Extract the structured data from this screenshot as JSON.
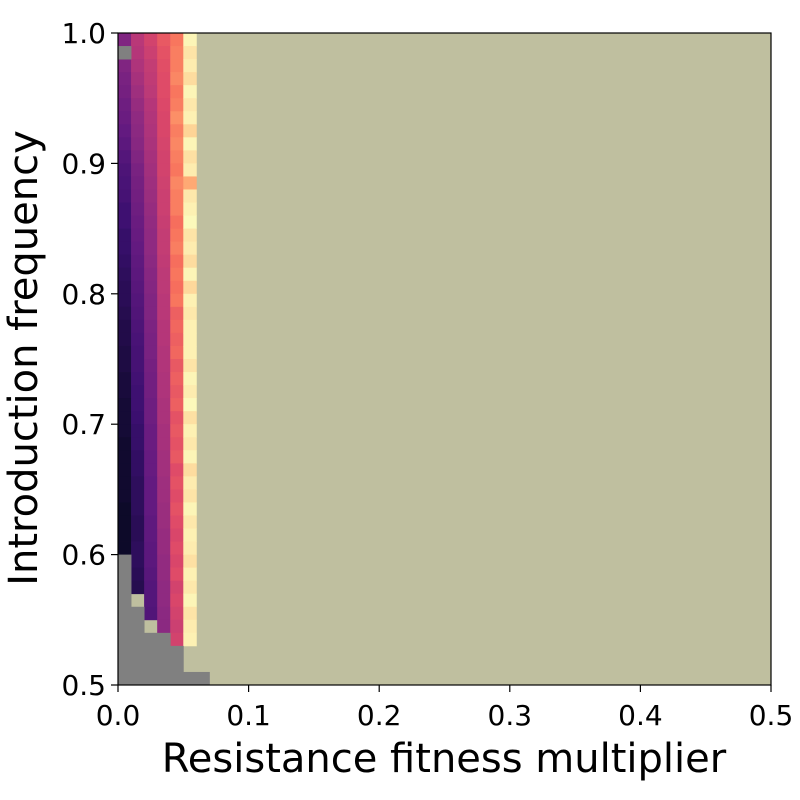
{
  "chart_data": {
    "type": "heatmap",
    "xlabel": "Resistance fitness multiplier",
    "ylabel": "Introduction frequency",
    "xlim": [
      0,
      0.5
    ],
    "ylim": [
      0.5,
      1.0
    ],
    "xticks": [
      "0.0",
      "0.1",
      "0.2",
      "0.3",
      "0.4",
      "0.5"
    ],
    "yticks": [
      "0.5",
      "0.6",
      "0.7",
      "0.8",
      "0.9",
      "1.0"
    ],
    "grid": false,
    "cell_size": {
      "dx": 0.01,
      "dy": 0.01
    },
    "colors": {
      "colormap": [
        "#0d0a29",
        "#3b0f70",
        "#641a80",
        "#8c2981",
        "#b73779",
        "#de4968",
        "#f7705c",
        "#fe9f6d",
        "#fecf92",
        "#fcfdbf"
      ],
      "background": "#bfbf9f",
      "failed": "#808080"
    },
    "grey_region": [
      {
        "x0": 0.0,
        "x1": 0.01,
        "y0": 0.5,
        "y1": 0.6
      },
      {
        "x0": 0.01,
        "x1": 0.02,
        "y0": 0.5,
        "y1": 0.56
      },
      {
        "x0": 0.02,
        "x1": 0.04,
        "y0": 0.5,
        "y1": 0.54
      },
      {
        "x0": 0.04,
        "x1": 0.05,
        "y0": 0.5,
        "y1": 0.53
      },
      {
        "x0": 0.05,
        "x1": 0.07,
        "y0": 0.5,
        "y1": 0.51
      },
      {
        "x0": 0.0,
        "x1": 0.01,
        "y0": 0.98,
        "y1": 0.99
      }
    ],
    "columns": [
      {
        "x": 0.0,
        "levels": [
          0.3,
          0.32,
          0.3,
          0.28,
          0.27,
          0.25,
          0.24,
          0.22,
          0.2,
          0.18,
          0.16,
          0.15,
          0.14,
          0.12,
          0.12,
          0.1,
          0.1,
          0.09,
          0.08,
          0.07,
          0.07,
          0.06,
          0.05,
          0.05,
          0.04,
          0.04,
          0.03,
          0.03,
          0.02,
          0.02,
          0.02,
          0.01,
          0.01,
          0.01,
          0.01,
          0.01,
          0.0,
          0.0,
          0.0,
          0.0
        ]
      },
      {
        "x": 0.01,
        "levels": [
          0.45,
          0.44,
          0.42,
          0.4,
          0.38,
          0.36,
          0.34,
          0.33,
          0.32,
          0.3,
          0.28,
          0.27,
          0.26,
          0.25,
          0.24,
          0.23,
          0.22,
          0.21,
          0.2,
          0.19,
          0.18,
          0.17,
          0.16,
          0.15,
          0.14,
          0.14,
          0.13,
          0.12,
          0.12,
          0.11,
          0.1,
          0.1,
          0.09,
          0.09,
          0.08,
          0.08,
          0.08,
          0.07,
          0.07,
          0.08,
          0.08,
          0.07,
          0.06
        ]
      },
      {
        "x": 0.02,
        "levels": [
          0.52,
          0.5,
          0.48,
          0.47,
          0.46,
          0.44,
          0.43,
          0.42,
          0.41,
          0.4,
          0.39,
          0.38,
          0.37,
          0.36,
          0.35,
          0.34,
          0.34,
          0.33,
          0.32,
          0.31,
          0.3,
          0.3,
          0.29,
          0.28,
          0.28,
          0.27,
          0.26,
          0.26,
          0.25,
          0.25,
          0.24,
          0.24,
          0.23,
          0.23,
          0.22,
          0.22,
          0.22,
          0.21,
          0.21,
          0.2,
          0.2,
          0.19,
          0.18,
          0.18,
          0.17
        ]
      },
      {
        "x": 0.03,
        "levels": [
          0.6,
          0.58,
          0.57,
          0.56,
          0.56,
          0.55,
          0.54,
          0.54,
          0.53,
          0.52,
          0.52,
          0.51,
          0.5,
          0.5,
          0.49,
          0.48,
          0.48,
          0.47,
          0.46,
          0.46,
          0.45,
          0.45,
          0.44,
          0.44,
          0.43,
          0.43,
          0.42,
          0.42,
          0.41,
          0.41,
          0.4,
          0.4,
          0.39,
          0.39,
          0.38,
          0.38,
          0.37,
          0.37,
          0.36,
          0.36,
          0.35,
          0.35,
          0.34,
          0.34,
          0.33,
          0.33
        ]
      },
      {
        "x": 0.04,
        "levels": [
          0.68,
          0.7,
          0.7,
          0.72,
          0.68,
          0.7,
          0.74,
          0.7,
          0.72,
          0.7,
          0.68,
          0.72,
          0.7,
          0.7,
          0.66,
          0.68,
          0.7,
          0.66,
          0.68,
          0.66,
          0.68,
          0.62,
          0.64,
          0.62,
          0.64,
          0.6,
          0.62,
          0.6,
          0.62,
          0.58,
          0.6,
          0.58,
          0.6,
          0.56,
          0.58,
          0.56,
          0.58,
          0.56,
          0.54,
          0.56,
          0.54,
          0.56,
          0.52,
          0.54,
          0.52,
          0.5,
          0.52
        ]
      },
      {
        "x": 0.05,
        "levels": [
          0.98,
          0.94,
          0.96,
          0.92,
          0.98,
          0.95,
          0.97,
          0.9,
          0.98,
          0.93,
          0.96,
          0.8,
          0.95,
          0.97,
          0.99,
          0.94,
          0.96,
          0.92,
          0.98,
          0.91,
          0.97,
          0.95,
          0.97,
          0.97,
          0.97,
          0.94,
          0.98,
          0.96,
          0.99,
          0.93,
          0.97,
          0.95,
          0.98,
          0.92,
          0.96,
          0.94,
          0.98,
          0.95,
          0.97,
          0.96,
          0.93,
          0.97,
          0.95,
          0.98,
          0.94,
          0.96,
          0.97
        ]
      }
    ]
  }
}
